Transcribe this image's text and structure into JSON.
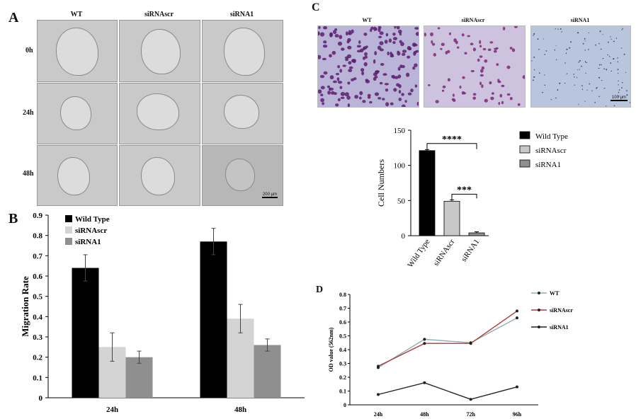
{
  "panels": {
    "A": {
      "letter": "A",
      "columns": [
        "WT",
        "siRNAscr",
        "siRNA1"
      ],
      "rows": [
        "0h",
        "24h",
        "48h"
      ],
      "scale_bar": "200 μm"
    },
    "C": {
      "letter": "C",
      "columns": [
        "WT",
        "siRNAscr",
        "siRNA1"
      ],
      "scale_bar": "100 μm"
    },
    "B": {
      "letter": "B"
    },
    "D": {
      "letter": "D"
    }
  },
  "chart_data": [
    {
      "id": "B",
      "type": "bar",
      "title": "",
      "ylabel": "Migration Rate",
      "xlabel": "",
      "categories": [
        "24h",
        "48h"
      ],
      "ylim": [
        0,
        0.9
      ],
      "yticks": [
        "0",
        "0.1",
        "0.2",
        "0.3",
        "0.4",
        "0.5",
        "0.6",
        "0.7",
        "0.8",
        "0.9"
      ],
      "series": [
        {
          "name": "Wild Type",
          "values": [
            0.64,
            0.77
          ],
          "errors": [
            0.065,
            0.065
          ],
          "color": "#000000"
        },
        {
          "name": "siRNAscr",
          "values": [
            0.25,
            0.39
          ],
          "errors": [
            0.07,
            0.07
          ],
          "color": "#d4d4d4"
        },
        {
          "name": "siRNA1",
          "values": [
            0.2,
            0.26
          ],
          "errors": [
            0.03,
            0.03
          ],
          "color": "#8f8f8f"
        }
      ],
      "legend": "top-left"
    },
    {
      "id": "C",
      "type": "bar",
      "ylabel": "Cell Numbers",
      "categories": [
        "Wild Type",
        "siRNAscr",
        "siRNA1"
      ],
      "values": [
        121,
        49,
        4
      ],
      "errors": [
        1.5,
        2,
        1.5
      ],
      "colors": [
        "#000000",
        "#c8c8c8",
        "#8f8f8f"
      ],
      "ylim": [
        0,
        150
      ],
      "yticks": [
        "0",
        "50",
        "100",
        "150"
      ],
      "significance": [
        {
          "from": 0,
          "to": 2,
          "label": "****"
        },
        {
          "from": 1,
          "to": 2,
          "label": "***"
        }
      ],
      "legend_entries": [
        "Wild Type",
        "siRNAscr",
        "siRNA1"
      ],
      "legend": "right"
    },
    {
      "id": "D",
      "type": "line",
      "ylabel": "OD value (562nm)",
      "categories": [
        "24h",
        "48h",
        "72h",
        "96h"
      ],
      "ylim": [
        0,
        0.8
      ],
      "yticks": [
        "0",
        "0.1",
        "0.2",
        "0.3",
        "0.4",
        "0.5",
        "0.6",
        "0.7",
        "0.8"
      ],
      "series": [
        {
          "name": "WT",
          "values": [
            0.27,
            0.475,
            0.45,
            0.63
          ],
          "color": "#8fb1b3"
        },
        {
          "name": "siRNAscr",
          "values": [
            0.28,
            0.445,
            0.445,
            0.68
          ],
          "color": "#b23a3a"
        },
        {
          "name": "siRNA1",
          "values": [
            0.075,
            0.16,
            0.04,
            0.13
          ],
          "color": "#222222"
        }
      ],
      "legend": "right"
    }
  ]
}
